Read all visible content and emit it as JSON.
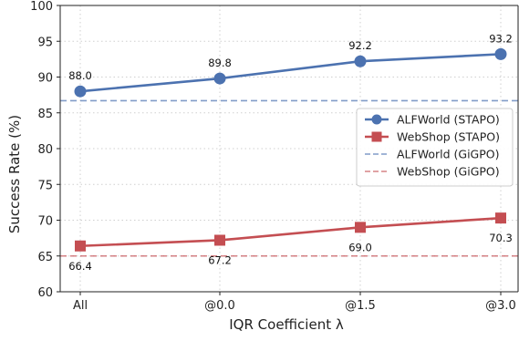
{
  "chart_data": {
    "type": "line",
    "categories": [
      "All",
      "@0.0",
      "@1.5",
      "@3.0"
    ],
    "xlabel": "IQR Coefficient λ",
    "ylabel": "Success Rate (%)",
    "ylim": [
      60,
      100
    ],
    "yticks": [
      60,
      65,
      70,
      75,
      80,
      85,
      90,
      95,
      100
    ],
    "grid": true,
    "legend_position": "center-right",
    "series": [
      {
        "name": "ALFWorld (STAPO)",
        "values": [
          88.0,
          89.8,
          92.2,
          93.2
        ],
        "labels": [
          "88.0",
          "89.8",
          "92.2",
          "93.2"
        ],
        "color": "#4c72b0",
        "marker": "circle",
        "label_pos": "above"
      },
      {
        "name": "WebShop (STAPO)",
        "values": [
          66.4,
          67.2,
          69.0,
          70.3
        ],
        "labels": [
          "66.4",
          "67.2",
          "69.0",
          "70.3"
        ],
        "color": "#c44e52",
        "marker": "square",
        "label_pos": "below"
      }
    ],
    "reference_lines": [
      {
        "name": "ALFWorld (GiGPO)",
        "value": 86.7,
        "color": "#4c72b0",
        "style": "dashed"
      },
      {
        "name": "WebShop (GiGPO)",
        "value": 65.0,
        "color": "#c44e52",
        "style": "dashed"
      }
    ]
  }
}
